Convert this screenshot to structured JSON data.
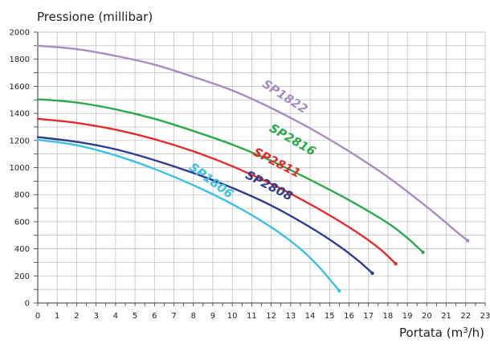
{
  "chart_data": {
    "type": "line",
    "title": "",
    "ylabel": "Pressione (millibar)",
    "xlabel_prefix": "Portata (m",
    "xlabel_sup": "3",
    "xlabel_suffix": "/h)",
    "xlim": [
      0,
      23
    ],
    "ylim": [
      0,
      2000
    ],
    "xticks": [
      0,
      1,
      2,
      3,
      4,
      5,
      6,
      7,
      8,
      9,
      10,
      11,
      12,
      13,
      14,
      15,
      16,
      17,
      18,
      19,
      20,
      21,
      22,
      23
    ],
    "yticks": [
      0,
      200,
      400,
      600,
      800,
      1000,
      1200,
      1400,
      1600,
      1800,
      2000
    ],
    "grid": true,
    "series": [
      {
        "name": "SP1822",
        "color": "#a78cc4",
        "points": [
          [
            0,
            1900
          ],
          [
            2,
            1875
          ],
          [
            4,
            1825
          ],
          [
            6,
            1760
          ],
          [
            8,
            1670
          ],
          [
            10,
            1570
          ],
          [
            12,
            1440
          ],
          [
            14,
            1290
          ],
          [
            16,
            1120
          ],
          [
            18,
            930
          ],
          [
            20,
            710
          ],
          [
            21.5,
            530
          ],
          [
            22.1,
            460
          ]
        ],
        "label_at": [
          12.6,
          1500
        ],
        "label_angle": 33
      },
      {
        "name": "SP2816",
        "color": "#2ca94a",
        "points": [
          [
            0,
            1505
          ],
          [
            2,
            1480
          ],
          [
            4,
            1430
          ],
          [
            6,
            1360
          ],
          [
            8,
            1270
          ],
          [
            10,
            1170
          ],
          [
            12,
            1050
          ],
          [
            14,
            910
          ],
          [
            16,
            760
          ],
          [
            18,
            590
          ],
          [
            19,
            480
          ],
          [
            19.8,
            375
          ]
        ],
        "label_at": [
          13.0,
          1180
        ],
        "label_angle": 30
      },
      {
        "name": "SP2811",
        "color": "#e32b2b",
        "points": [
          [
            0,
            1360
          ],
          [
            2,
            1330
          ],
          [
            4,
            1280
          ],
          [
            6,
            1210
          ],
          [
            8,
            1120
          ],
          [
            10,
            1010
          ],
          [
            12,
            880
          ],
          [
            14,
            730
          ],
          [
            16,
            560
          ],
          [
            17.5,
            410
          ],
          [
            18.4,
            290
          ]
        ],
        "label_at": [
          12.2,
          1010
        ],
        "label_angle": 27
      },
      {
        "name": "SP2808",
        "color": "#2e3d8f",
        "points": [
          [
            0,
            1225
          ],
          [
            2,
            1190
          ],
          [
            4,
            1135
          ],
          [
            6,
            1055
          ],
          [
            8,
            960
          ],
          [
            10,
            850
          ],
          [
            12,
            720
          ],
          [
            14,
            560
          ],
          [
            15.5,
            420
          ],
          [
            16.5,
            310
          ],
          [
            17.2,
            220
          ]
        ],
        "label_at": [
          11.8,
          840
        ],
        "label_angle": 27
      },
      {
        "name": "SP1806",
        "color": "#3bc0e8",
        "points": [
          [
            0,
            1205
          ],
          [
            2,
            1165
          ],
          [
            4,
            1090
          ],
          [
            6,
            990
          ],
          [
            8,
            870
          ],
          [
            10,
            730
          ],
          [
            12,
            560
          ],
          [
            13.5,
            400
          ],
          [
            14.5,
            260
          ],
          [
            15.5,
            90
          ]
        ],
        "label_at": [
          8.8,
          880
        ],
        "label_angle": 36
      }
    ]
  }
}
